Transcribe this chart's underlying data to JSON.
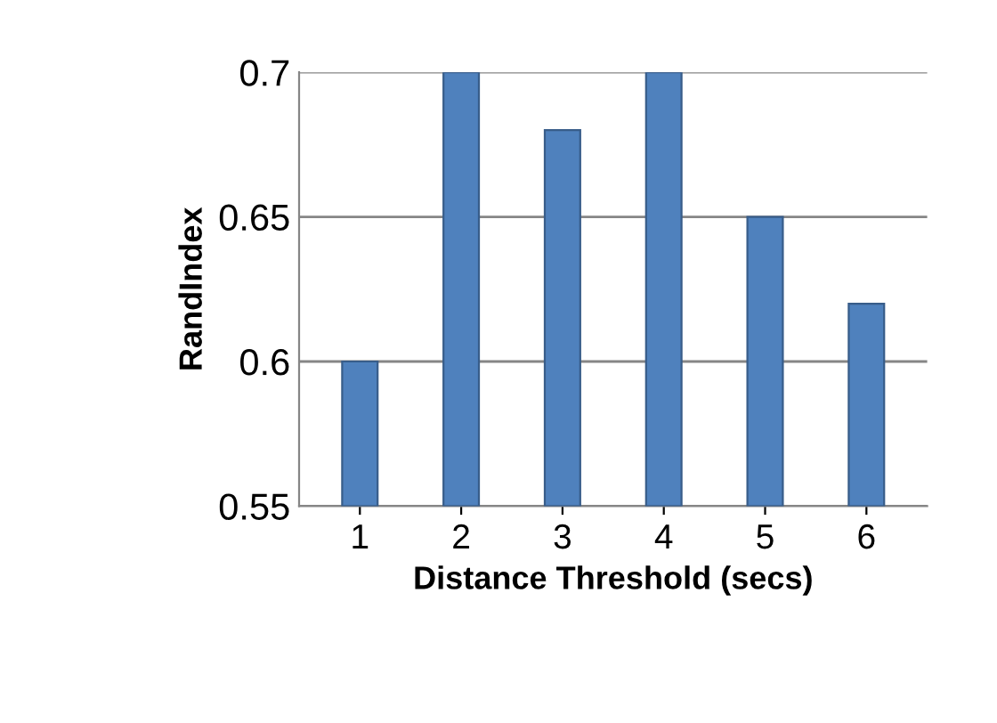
{
  "chart_data": {
    "type": "bar",
    "xlabel": "Distance Threshold (secs)",
    "ylabel": "RandIndex",
    "categories": [
      "1",
      "2",
      "3",
      "4",
      "5",
      "6"
    ],
    "values": [
      0.6,
      0.7,
      0.68,
      0.7,
      0.65,
      0.62
    ],
    "color": "#4f81bd",
    "ylim": [
      0.55,
      0.7
    ],
    "yticks": [
      0.55,
      0.6,
      0.65,
      0.7
    ],
    "grid": "y"
  }
}
